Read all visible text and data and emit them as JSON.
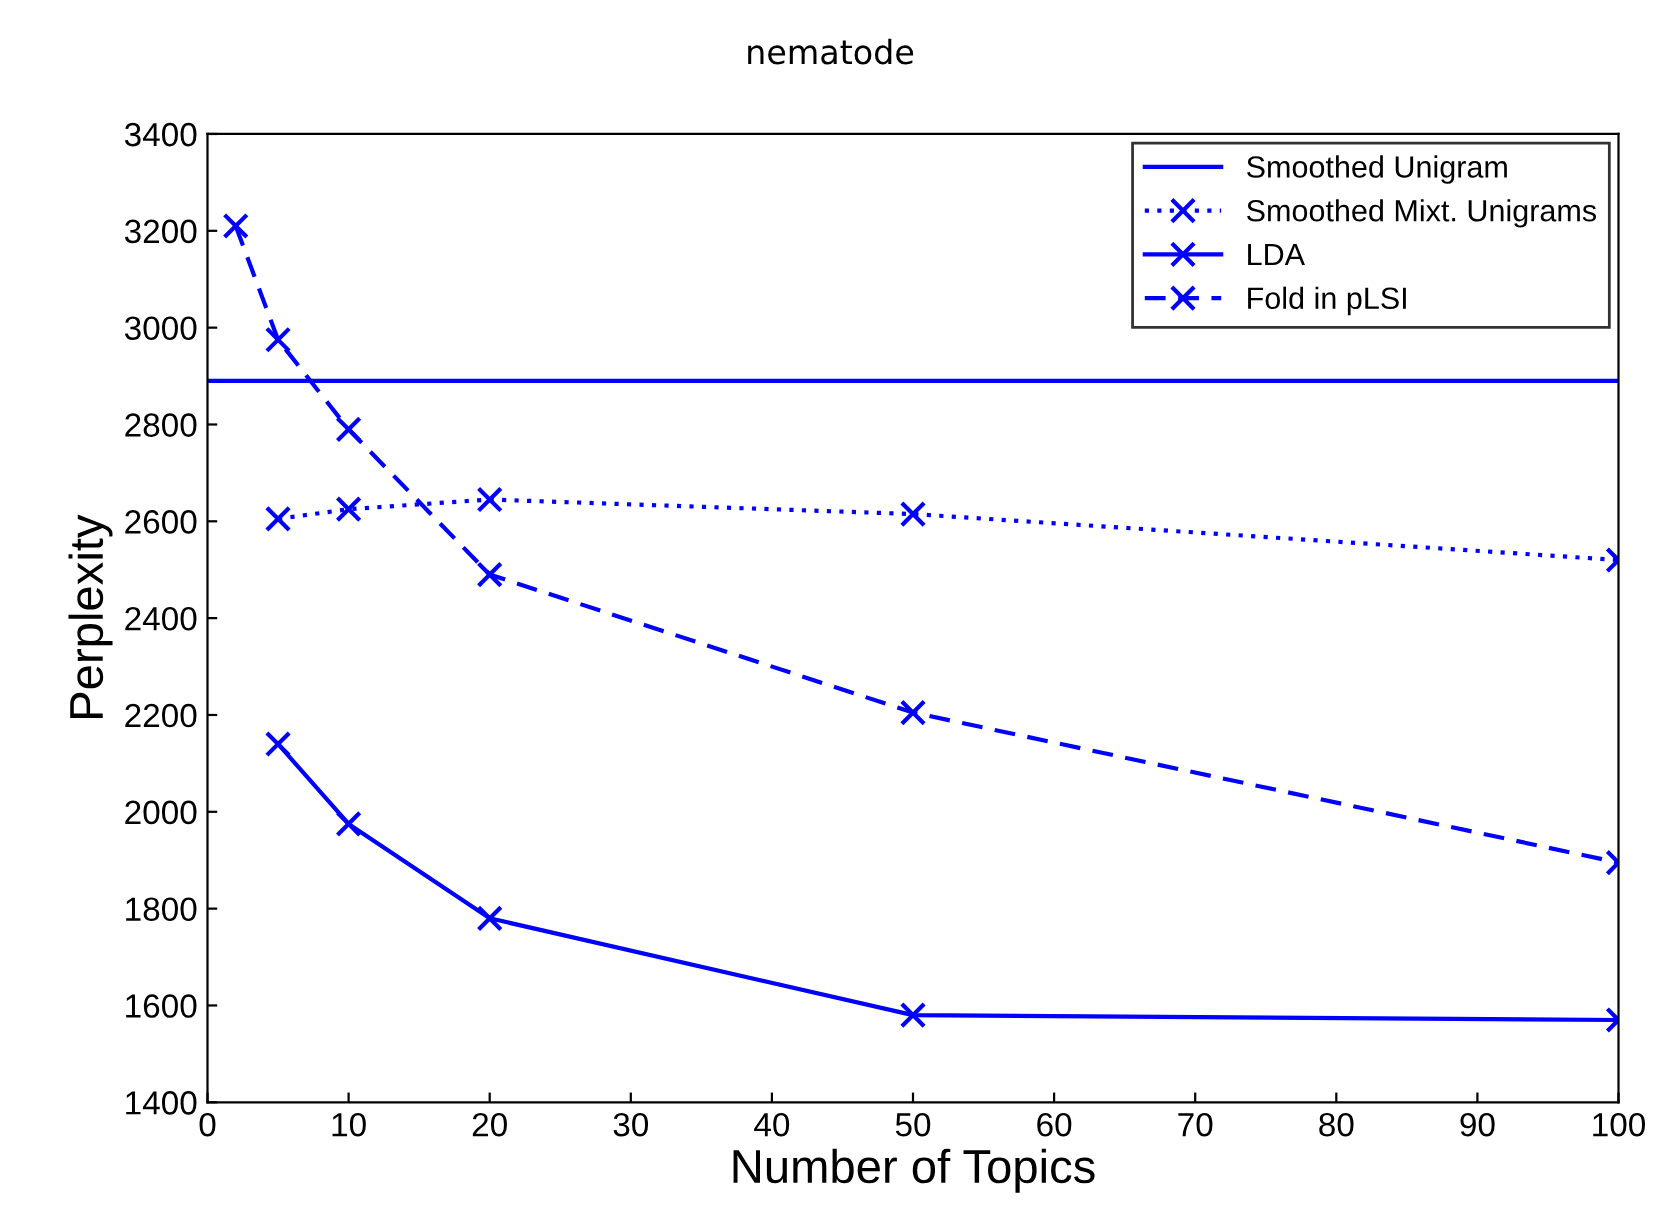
{
  "chart_data": {
    "type": "line",
    "title": "nematode",
    "xlabel": "Number of Topics",
    "ylabel": "Perplexity",
    "xlim": [
      0,
      100
    ],
    "xticks": [
      0,
      10,
      20,
      30,
      40,
      50,
      60,
      70,
      80,
      90,
      100
    ],
    "ylim": [
      1400,
      3400
    ],
    "yticks": [
      1400,
      1600,
      1800,
      2000,
      2200,
      2400,
      2600,
      2800,
      3000,
      3200,
      3400
    ],
    "grid": false,
    "legend": "top right",
    "series": [
      {
        "name": "Smoothed Unigram",
        "color": "#0000ff",
        "x": [
          0,
          100
        ],
        "values": [
          2890,
          2890
        ],
        "marker": "none",
        "line_style": "solid"
      },
      {
        "name": "Smoothed Mixt. Unigrams",
        "color": "#0000ff",
        "x": [
          5,
          10,
          20,
          50,
          100
        ],
        "values": [
          2605,
          2625,
          2645,
          2615,
          2520
        ],
        "marker": "cross",
        "line_style": "dotted"
      },
      {
        "name": "LDA",
        "color": "#0000ff",
        "x": [
          5,
          10,
          20,
          50,
          100
        ],
        "values": [
          2140,
          1975,
          1780,
          1580,
          1570
        ],
        "marker": "cross",
        "line_style": "solid"
      },
      {
        "name": "Fold in pLSI",
        "color": "#0000ff",
        "x": [
          2,
          5,
          10,
          20,
          50,
          100
        ],
        "values": [
          3210,
          2975,
          2790,
          2490,
          2205,
          1895
        ],
        "marker": "cross",
        "line_style": "dashed"
      }
    ]
  }
}
